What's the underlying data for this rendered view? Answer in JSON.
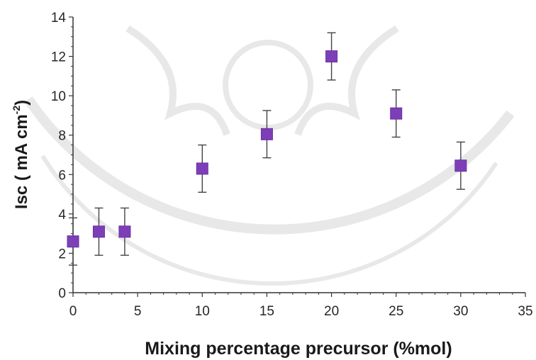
{
  "chart_data": {
    "type": "scatter",
    "title": "",
    "xlabel": "Mixing percentage precursor (%mol)",
    "ylabel_main": "Isc ( mA cm",
    "ylabel_sup": "-2",
    "ylabel_close": ")",
    "xlim": [
      0,
      35
    ],
    "ylim": [
      0,
      14
    ],
    "xticks": [
      0,
      5,
      10,
      15,
      20,
      25,
      30,
      35
    ],
    "yticks": [
      0,
      2,
      4,
      6,
      8,
      10,
      12,
      14
    ],
    "grid": false,
    "legend": "none",
    "marker_color": "#7d3fb8",
    "marker_shape": "square",
    "series": [
      {
        "x": [
          0,
          2,
          4,
          10,
          15,
          20,
          25,
          30
        ],
        "y": [
          2.6,
          3.1,
          3.1,
          6.3,
          8.05,
          12.0,
          9.1,
          6.45
        ],
        "error": [
          1.2,
          1.2,
          1.2,
          1.2,
          1.2,
          1.2,
          1.2,
          1.2
        ]
      }
    ]
  },
  "watermark": {
    "description_icon": "university-seal-watermark"
  }
}
